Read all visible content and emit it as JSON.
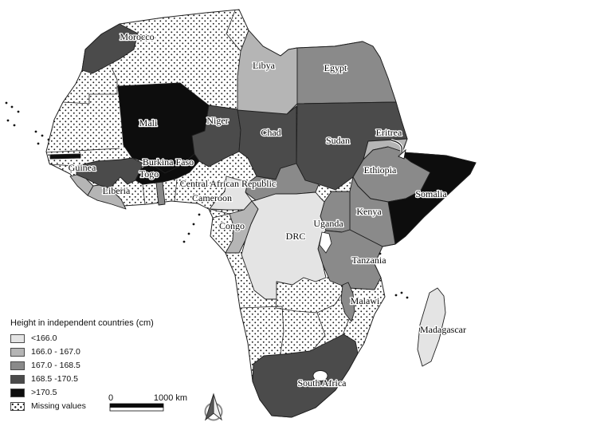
{
  "legend": {
    "title": "Height in independent countries (cm)",
    "items": [
      {
        "label": "<166.0",
        "cls": "c0"
      },
      {
        "label": "166.0 - 167.0",
        "cls": "c1"
      },
      {
        "label": "167.0 - 168.5",
        "cls": "c2"
      },
      {
        "label": "168.5 -170.5",
        "cls": "c3"
      },
      {
        "label": ">170.5",
        "cls": "c4"
      },
      {
        "label": "Missing values",
        "cls": "missing"
      }
    ]
  },
  "scalebar": {
    "start_label": "0",
    "end_label": "1000 km"
  },
  "map": {
    "background": "#ffffff",
    "stroke_color": "#1f1f1f",
    "label_halo": "#ffffff",
    "classes": {
      "c0": "#e4e4e4",
      "c1": "#b5b5b5",
      "c2": "#8a8a8a",
      "c3": "#4b4b4b",
      "c4": "#0d0d0d"
    },
    "missing_style": "black dot pattern on white",
    "countries": [
      {
        "id": "morocco",
        "label": "Morocco",
        "cls": "c3"
      },
      {
        "id": "mali",
        "label": "Mali",
        "cls": "c4"
      },
      {
        "id": "gambia",
        "label": "",
        "cls": "c4"
      },
      {
        "id": "guinea",
        "label": "Guinea",
        "cls": "c3"
      },
      {
        "id": "sierra_leone",
        "label": "",
        "cls": "c1"
      },
      {
        "id": "liberia",
        "label": "Liberia",
        "cls": "c1"
      },
      {
        "id": "burkina_faso",
        "label": "Burkina Faso",
        "cls": "c4"
      },
      {
        "id": "togo",
        "label": "Togo",
        "cls": "c2"
      },
      {
        "id": "niger",
        "label": "Niger",
        "cls": "c3"
      },
      {
        "id": "chad",
        "label": "Chad",
        "cls": "c3"
      },
      {
        "id": "libya",
        "label": "Libya",
        "cls": "c1"
      },
      {
        "id": "egypt",
        "label": "Egypt",
        "cls": "c2"
      },
      {
        "id": "sudan",
        "label": "Sudan",
        "cls": "c3"
      },
      {
        "id": "eritrea",
        "label": "Eritrea",
        "cls": "c1"
      },
      {
        "id": "ethiopia",
        "label": "Ethiopia",
        "cls": "c2"
      },
      {
        "id": "somalia",
        "label": "Somalia",
        "cls": "c4"
      },
      {
        "id": "kenya",
        "label": "Kenya",
        "cls": "c2"
      },
      {
        "id": "uganda",
        "label": "Uganda",
        "cls": "c2"
      },
      {
        "id": "tanzania",
        "label": "Tanzania",
        "cls": "c2"
      },
      {
        "id": "car",
        "label": "Central African Republic",
        "cls": "c2"
      },
      {
        "id": "cameroon",
        "label": "Cameroon",
        "cls": "c0"
      },
      {
        "id": "congo",
        "label": "Congo",
        "cls": "c1"
      },
      {
        "id": "drc",
        "label": "DRC",
        "cls": "c0"
      },
      {
        "id": "malawi",
        "label": "Malawi",
        "cls": "c2"
      },
      {
        "id": "south_africa",
        "label": "South Africa",
        "cls": "c3"
      },
      {
        "id": "madagascar",
        "label": "Madagascar",
        "cls": "c0"
      }
    ]
  }
}
